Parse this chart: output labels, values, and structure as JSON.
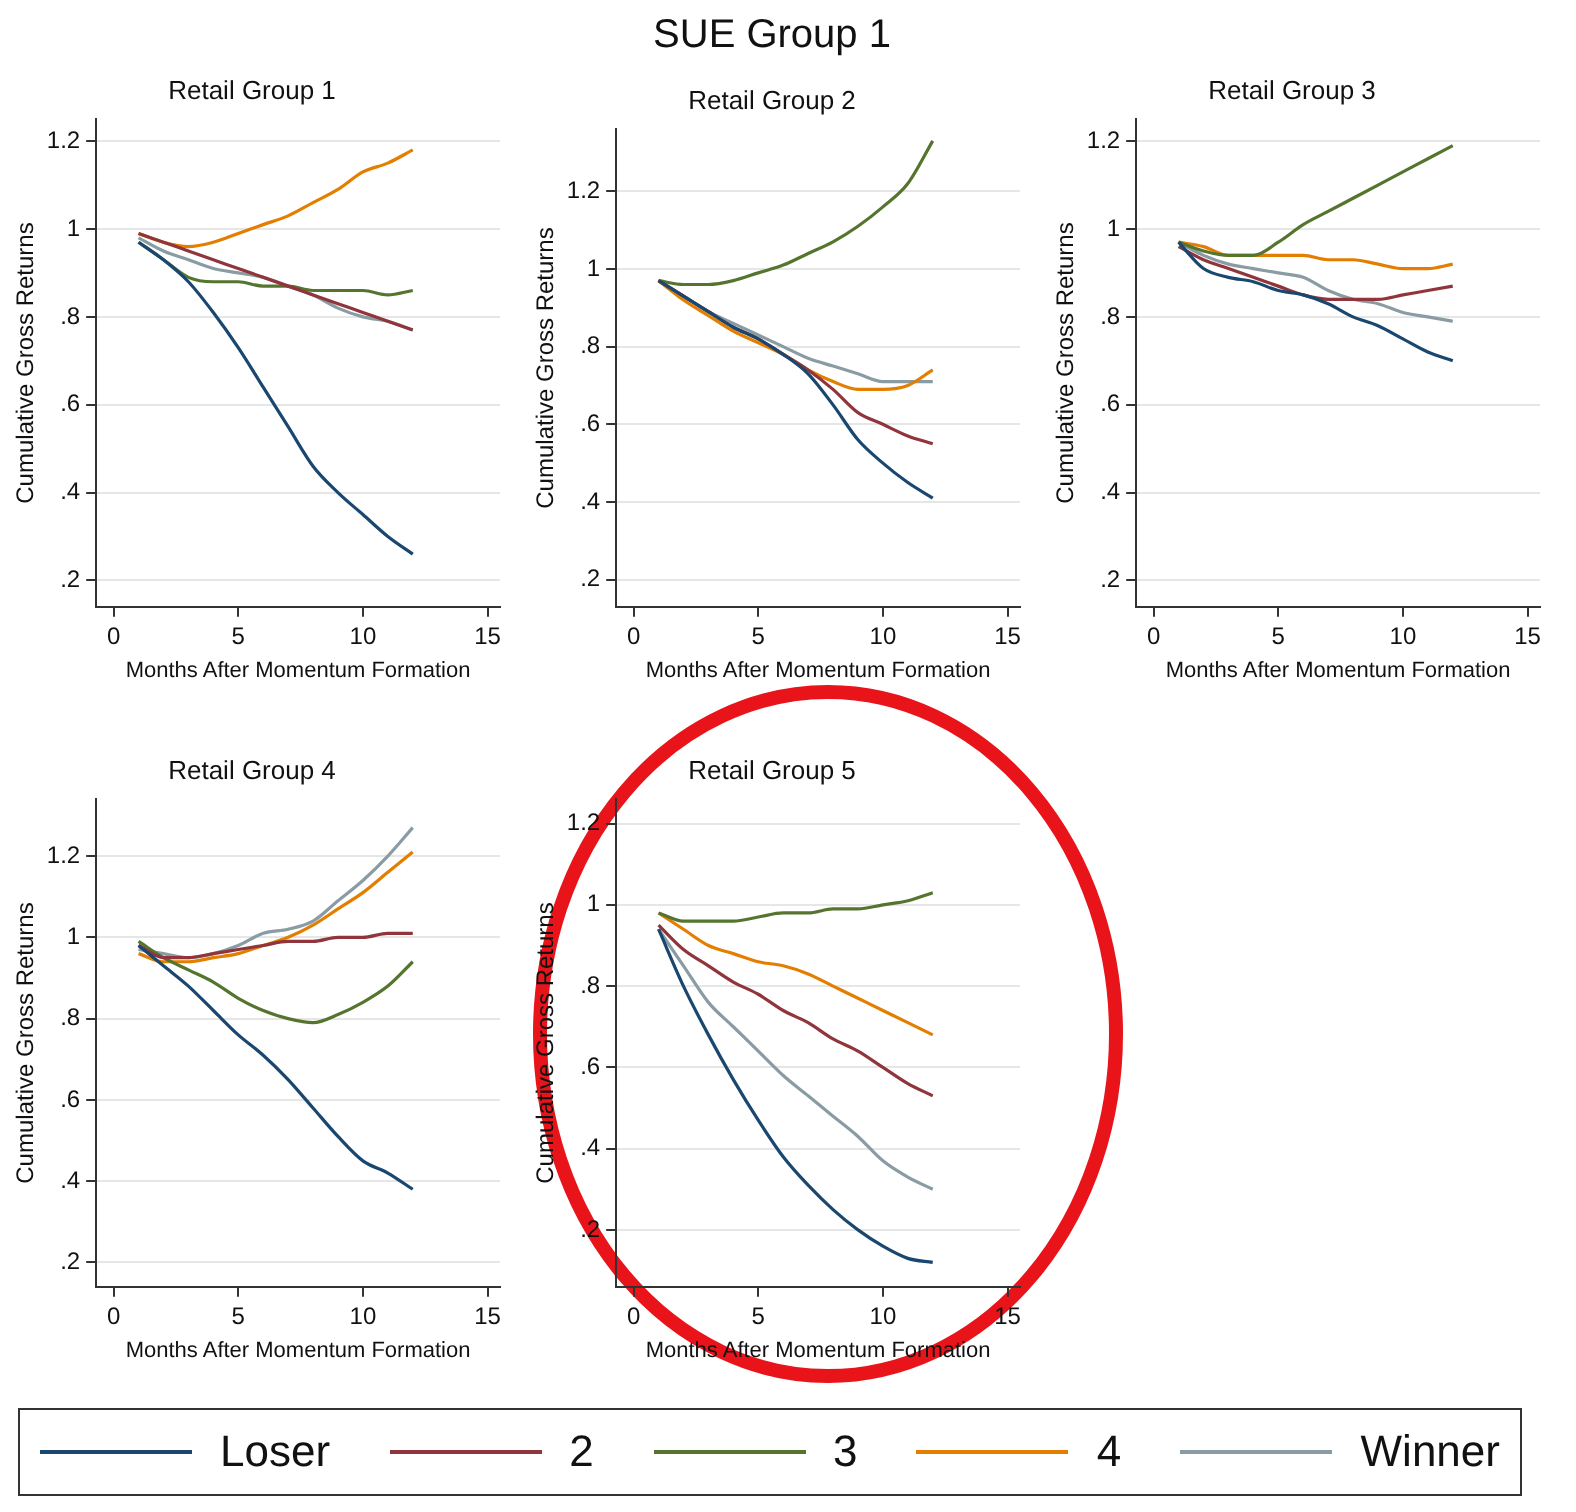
{
  "chart_data": [
    {
      "type": "line",
      "title": "Retail Group 1",
      "xlabel": "Months After Momentum Formation",
      "ylabel": "Cumulative Gross Returns",
      "x": [
        1,
        2,
        3,
        4,
        5,
        6,
        7,
        8,
        9,
        10,
        11,
        12
      ],
      "xlim": [
        -0.7,
        15.5
      ],
      "xticks": [
        0,
        5,
        10,
        15
      ],
      "ylim": [
        0.14,
        1.25
      ],
      "yticks": [
        {
          "value": 0.2,
          "label": ".2"
        },
        {
          "value": 0.4,
          "label": ".4"
        },
        {
          "value": 0.6,
          "label": ".6"
        },
        {
          "value": 0.8,
          "label": ".8"
        },
        {
          "value": 1,
          "label": "1"
        },
        {
          "value": 1.2,
          "label": "1.2"
        }
      ],
      "grid": "y",
      "marker": "none",
      "series": [
        {
          "color": "#1a476f",
          "values": [
            0.97,
            0.93,
            0.88,
            0.81,
            0.73,
            0.64,
            0.55,
            0.46,
            0.4,
            0.35,
            0.3,
            0.26
          ]
        },
        {
          "color": "#90353b",
          "values": [
            0.99,
            0.97,
            0.95,
            0.93,
            0.91,
            0.89,
            0.87,
            0.85,
            0.83,
            0.81,
            0.79,
            0.77
          ]
        },
        {
          "color": "#55752f",
          "values": [
            0.97,
            0.93,
            0.89,
            0.88,
            0.88,
            0.87,
            0.87,
            0.86,
            0.86,
            0.86,
            0.85,
            0.86
          ]
        },
        {
          "color": "#e37e00",
          "values": [
            0.99,
            0.97,
            0.96,
            0.97,
            0.99,
            1.01,
            1.03,
            1.06,
            1.09,
            1.13,
            1.15,
            1.18
          ]
        },
        {
          "color": "#8a9ca3",
          "values": [
            0.98,
            0.95,
            0.93,
            0.91,
            0.9,
            0.89,
            0.87,
            0.85,
            0.82,
            0.8,
            0.79,
            0.77
          ]
        }
      ]
    },
    {
      "type": "line",
      "title": "SUE Group 1",
      "subtitle": "Retail Group 2",
      "xlabel": "Months After Momentum Formation",
      "ylabel": "Cumulative Gross Returns",
      "x": [
        1,
        2,
        3,
        4,
        5,
        6,
        7,
        8,
        9,
        10,
        11,
        12
      ],
      "xlim": [
        -0.7,
        15.5
      ],
      "xticks": [
        0,
        5,
        10,
        15
      ],
      "ylim": [
        0.13,
        1.36
      ],
      "yticks": [
        {
          "value": 0.2,
          "label": ".2"
        },
        {
          "value": 0.4,
          "label": ".4"
        },
        {
          "value": 0.6,
          "label": ".6"
        },
        {
          "value": 0.8,
          "label": ".8"
        },
        {
          "value": 1,
          "label": "1"
        },
        {
          "value": 1.2,
          "label": "1.2"
        }
      ],
      "grid": "y",
      "marker": "none",
      "series": [
        {
          "color": "#1a476f",
          "values": [
            0.97,
            0.93,
            0.89,
            0.85,
            0.82,
            0.78,
            0.73,
            0.65,
            0.56,
            0.5,
            0.45,
            0.41
          ]
        },
        {
          "color": "#90353b",
          "values": [
            0.97,
            0.93,
            0.89,
            0.85,
            0.82,
            0.78,
            0.74,
            0.69,
            0.63,
            0.6,
            0.57,
            0.55
          ]
        },
        {
          "color": "#55752f",
          "values": [
            0.97,
            0.96,
            0.96,
            0.97,
            0.99,
            1.01,
            1.04,
            1.07,
            1.11,
            1.16,
            1.22,
            1.33
          ]
        },
        {
          "color": "#e37e00",
          "values": [
            0.97,
            0.92,
            0.88,
            0.84,
            0.81,
            0.78,
            0.74,
            0.71,
            0.69,
            0.69,
            0.7,
            0.74
          ]
        },
        {
          "color": "#8a9ca3",
          "values": [
            0.97,
            0.93,
            0.89,
            0.86,
            0.83,
            0.8,
            0.77,
            0.75,
            0.73,
            0.71,
            0.71,
            0.71
          ]
        }
      ]
    },
    {
      "type": "line",
      "title": "Retail Group 3",
      "xlabel": "Months After Momentum Formation",
      "ylabel": "Cumulative Gross Returns",
      "x": [
        1,
        2,
        3,
        4,
        5,
        6,
        7,
        8,
        9,
        10,
        11,
        12
      ],
      "xlim": [
        -0.7,
        15.5
      ],
      "xticks": [
        0,
        5,
        10,
        15
      ],
      "ylim": [
        0.14,
        1.25
      ],
      "yticks": [
        {
          "value": 0.2,
          "label": ".2"
        },
        {
          "value": 0.4,
          "label": ".4"
        },
        {
          "value": 0.6,
          "label": ".6"
        },
        {
          "value": 0.8,
          "label": ".8"
        },
        {
          "value": 1,
          "label": "1"
        },
        {
          "value": 1.2,
          "label": "1.2"
        }
      ],
      "grid": "y",
      "marker": "none",
      "series": [
        {
          "color": "#1a476f",
          "values": [
            0.97,
            0.91,
            0.89,
            0.88,
            0.86,
            0.85,
            0.83,
            0.8,
            0.78,
            0.75,
            0.72,
            0.7
          ]
        },
        {
          "color": "#90353b",
          "values": [
            0.96,
            0.93,
            0.91,
            0.89,
            0.87,
            0.85,
            0.84,
            0.84,
            0.84,
            0.85,
            0.86,
            0.87
          ]
        },
        {
          "color": "#55752f",
          "values": [
            0.97,
            0.95,
            0.94,
            0.94,
            0.97,
            1.01,
            1.04,
            1.07,
            1.1,
            1.13,
            1.16,
            1.19
          ]
        },
        {
          "color": "#e37e00",
          "values": [
            0.97,
            0.96,
            0.94,
            0.94,
            0.94,
            0.94,
            0.93,
            0.93,
            0.92,
            0.91,
            0.91,
            0.92
          ]
        },
        {
          "color": "#8a9ca3",
          "values": [
            0.97,
            0.94,
            0.92,
            0.91,
            0.9,
            0.89,
            0.86,
            0.84,
            0.83,
            0.81,
            0.8,
            0.79
          ]
        }
      ]
    },
    {
      "type": "line",
      "title": "Retail Group 4",
      "xlabel": "Months After Momentum Formation",
      "ylabel": "Cumulative Gross Returns",
      "x": [
        1,
        2,
        3,
        4,
        5,
        6,
        7,
        8,
        9,
        10,
        11,
        12
      ],
      "xlim": [
        -0.7,
        15.5
      ],
      "xticks": [
        0,
        5,
        10,
        15
      ],
      "ylim": [
        0.14,
        1.34
      ],
      "yticks": [
        {
          "value": 0.2,
          "label": ".2"
        },
        {
          "value": 0.4,
          "label": ".4"
        },
        {
          "value": 0.6,
          "label": ".6"
        },
        {
          "value": 0.8,
          "label": ".8"
        },
        {
          "value": 1,
          "label": "1"
        },
        {
          "value": 1.2,
          "label": "1.2"
        }
      ],
      "grid": "y",
      "marker": "none",
      "series": [
        {
          "color": "#1a476f",
          "values": [
            0.98,
            0.93,
            0.88,
            0.82,
            0.76,
            0.71,
            0.65,
            0.58,
            0.51,
            0.45,
            0.42,
            0.38
          ]
        },
        {
          "color": "#90353b",
          "values": [
            0.98,
            0.95,
            0.95,
            0.96,
            0.97,
            0.98,
            0.99,
            0.99,
            1.0,
            1.0,
            1.01,
            1.01
          ]
        },
        {
          "color": "#55752f",
          "values": [
            0.99,
            0.95,
            0.92,
            0.89,
            0.85,
            0.82,
            0.8,
            0.79,
            0.81,
            0.84,
            0.88,
            0.94
          ]
        },
        {
          "color": "#e37e00",
          "values": [
            0.96,
            0.94,
            0.94,
            0.95,
            0.96,
            0.98,
            1.0,
            1.03,
            1.07,
            1.11,
            1.16,
            1.21
          ]
        },
        {
          "color": "#8a9ca3",
          "values": [
            0.97,
            0.96,
            0.95,
            0.96,
            0.98,
            1.01,
            1.02,
            1.04,
            1.09,
            1.14,
            1.2,
            1.27
          ]
        }
      ]
    },
    {
      "type": "line",
      "title": "Retail Group 5",
      "xlabel": "Months After Momentum Formation",
      "ylabel": "Cumulative Gross Returns",
      "x": [
        1,
        2,
        3,
        4,
        5,
        6,
        7,
        8,
        9,
        10,
        11,
        12
      ],
      "xlim": [
        -0.7,
        15.5
      ],
      "xticks": [
        0,
        5,
        10,
        15
      ],
      "ylim": [
        0.06,
        1.26
      ],
      "yticks": [
        {
          "value": 0.2,
          "label": ".2"
        },
        {
          "value": 0.4,
          "label": ".4"
        },
        {
          "value": 0.6,
          "label": ".6"
        },
        {
          "value": 0.8,
          "label": ".8"
        },
        {
          "value": 1,
          "label": "1"
        },
        {
          "value": 1.2,
          "label": "1.2"
        }
      ],
      "grid": "y",
      "marker": "none",
      "legend": "bottom",
      "series": [
        {
          "name": "Loser",
          "color": "#1a476f",
          "values": [
            0.94,
            0.8,
            0.68,
            0.57,
            0.47,
            0.38,
            0.31,
            0.25,
            0.2,
            0.16,
            0.13,
            0.12
          ]
        },
        {
          "name": "2",
          "color": "#90353b",
          "values": [
            0.95,
            0.89,
            0.85,
            0.81,
            0.78,
            0.74,
            0.71,
            0.67,
            0.64,
            0.6,
            0.56,
            0.53
          ]
        },
        {
          "name": "3",
          "color": "#55752f",
          "values": [
            0.98,
            0.96,
            0.96,
            0.96,
            0.97,
            0.98,
            0.98,
            0.99,
            0.99,
            1.0,
            1.01,
            1.03
          ]
        },
        {
          "name": "4",
          "color": "#e37e00",
          "values": [
            0.98,
            0.94,
            0.9,
            0.88,
            0.86,
            0.85,
            0.83,
            0.8,
            0.77,
            0.74,
            0.71,
            0.68
          ]
        },
        {
          "name": "Winner",
          "color": "#8a9ca3",
          "values": [
            0.94,
            0.85,
            0.76,
            0.7,
            0.64,
            0.58,
            0.53,
            0.48,
            0.43,
            0.37,
            0.33,
            0.3
          ]
        }
      ]
    }
  ]
}
